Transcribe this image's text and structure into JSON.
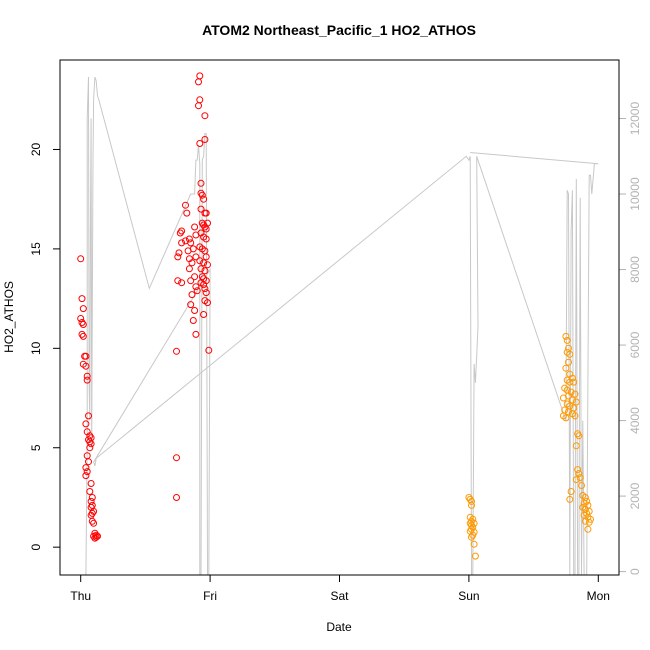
{
  "chart_data": {
    "type": "scatter",
    "title": "ATOM2 Northeast_Pacific_1 HO2_ATHOS",
    "xlabel": "Date",
    "ylabel": "HO2_ATHOS",
    "x_ticks": [
      {
        "value": 0,
        "label": "Thu"
      },
      {
        "value": 1,
        "label": "Fri"
      },
      {
        "value": 2,
        "label": "Sat"
      },
      {
        "value": 3,
        "label": "Sun"
      },
      {
        "value": 4,
        "label": "Mon"
      }
    ],
    "xlim": [
      -0.16,
      4.16
    ],
    "ylim": [
      -1.4,
      24.5
    ],
    "y_ticks": [
      0,
      5,
      10,
      15,
      20
    ],
    "y2lim": [
      -90,
      13550
    ],
    "y2_ticks": [
      0,
      2000,
      4000,
      6000,
      8000,
      10000,
      12000
    ],
    "grid": false,
    "colors": {
      "red": "#ff0000",
      "orange": "#ff9900",
      "altitude_line": "#c8c8c8"
    },
    "series": [
      {
        "color": "red",
        "points": [
          [
            0.0,
            14.5
          ],
          [
            0.01,
            12.5
          ],
          [
            0.02,
            12.0
          ],
          [
            0.0,
            11.5
          ],
          [
            0.01,
            11.3
          ],
          [
            0.02,
            11.2
          ],
          [
            0.01,
            10.7
          ],
          [
            0.02,
            10.6
          ],
          [
            0.03,
            9.6
          ],
          [
            0.04,
            9.6
          ],
          [
            0.02,
            9.2
          ],
          [
            0.04,
            9.1
          ],
          [
            0.05,
            8.6
          ],
          [
            0.05,
            8.4
          ],
          [
            0.06,
            6.6
          ],
          [
            0.04,
            6.2
          ],
          [
            0.05,
            5.8
          ],
          [
            0.07,
            5.6
          ],
          [
            0.08,
            5.5
          ],
          [
            0.06,
            5.4
          ],
          [
            0.07,
            5.3
          ],
          [
            0.08,
            5.2
          ],
          [
            0.07,
            5.0
          ],
          [
            0.05,
            4.6
          ],
          [
            0.06,
            4.3
          ],
          [
            0.04,
            4.0
          ],
          [
            0.05,
            3.8
          ],
          [
            0.04,
            3.6
          ],
          [
            0.08,
            3.2
          ],
          [
            0.07,
            2.8
          ],
          [
            0.09,
            2.5
          ],
          [
            0.08,
            2.3
          ],
          [
            0.09,
            2.1
          ],
          [
            0.08,
            2.0
          ],
          [
            0.1,
            1.8
          ],
          [
            0.09,
            1.7
          ],
          [
            0.08,
            1.6
          ],
          [
            0.09,
            1.3
          ],
          [
            0.1,
            1.2
          ],
          [
            0.11,
            0.7
          ],
          [
            0.12,
            0.6
          ],
          [
            0.1,
            0.55
          ],
          [
            0.12,
            0.5
          ],
          [
            0.11,
            0.45
          ],
          [
            0.13,
            0.55
          ],
          [
            0.74,
            9.85
          ],
          [
            0.74,
            4.5
          ],
          [
            0.74,
            2.5
          ],
          [
            0.75,
            14.6
          ],
          [
            0.76,
            14.8
          ],
          [
            0.75,
            13.4
          ],
          [
            0.78,
            13.3
          ],
          [
            0.77,
            15.8
          ],
          [
            0.78,
            15.9
          ],
          [
            0.78,
            15.3
          ],
          [
            0.81,
            17.2
          ],
          [
            0.82,
            16.8
          ],
          [
            0.81,
            15.4
          ],
          [
            0.84,
            15.5
          ],
          [
            0.85,
            15.3
          ],
          [
            0.83,
            14.9
          ],
          [
            0.84,
            14.5
          ],
          [
            0.86,
            14.3
          ],
          [
            0.84,
            14.0
          ],
          [
            0.85,
            13.4
          ],
          [
            0.86,
            12.7
          ],
          [
            0.85,
            12.2
          ],
          [
            0.88,
            16.1
          ],
          [
            0.89,
            15.7
          ],
          [
            0.87,
            15.0
          ],
          [
            0.89,
            14.6
          ],
          [
            0.88,
            13.6
          ],
          [
            0.89,
            13.1
          ],
          [
            0.9,
            12.9
          ],
          [
            0.88,
            11.9
          ],
          [
            0.87,
            11.4
          ],
          [
            0.89,
            10.7
          ],
          [
            0.92,
            23.7
          ],
          [
            0.91,
            23.4
          ],
          [
            0.92,
            22.5
          ],
          [
            0.91,
            22.2
          ],
          [
            0.96,
            21.7
          ],
          [
            0.92,
            20.3
          ],
          [
            0.96,
            20.5
          ],
          [
            0.93,
            18.3
          ],
          [
            0.93,
            17.8
          ],
          [
            0.95,
            17.5
          ],
          [
            0.94,
            17.7
          ],
          [
            0.93,
            17.0
          ],
          [
            0.96,
            16.8
          ],
          [
            0.97,
            16.8
          ],
          [
            0.94,
            16.3
          ],
          [
            0.95,
            16.2
          ],
          [
            0.96,
            16.1
          ],
          [
            0.98,
            16.3
          ],
          [
            0.97,
            16.0
          ],
          [
            0.93,
            15.8
          ],
          [
            0.95,
            15.6
          ],
          [
            0.97,
            15.5
          ],
          [
            0.92,
            15.1
          ],
          [
            0.94,
            15.0
          ],
          [
            0.96,
            14.9
          ],
          [
            0.97,
            14.6
          ],
          [
            0.92,
            14.4
          ],
          [
            0.95,
            14.3
          ],
          [
            0.93,
            14.0
          ],
          [
            0.96,
            13.9
          ],
          [
            0.98,
            14.2
          ],
          [
            0.94,
            13.6
          ],
          [
            0.95,
            13.5
          ],
          [
            0.97,
            13.4
          ],
          [
            0.93,
            13.3
          ],
          [
            0.95,
            13.2
          ],
          [
            0.96,
            13.0
          ],
          [
            0.97,
            12.8
          ],
          [
            0.98,
            12.3
          ],
          [
            0.96,
            12.4
          ],
          [
            0.95,
            11.7
          ],
          [
            0.99,
            9.9
          ]
        ]
      },
      {
        "color": "orange",
        "points": [
          [
            3.0,
            2.5
          ],
          [
            3.01,
            2.4
          ],
          [
            3.02,
            2.3
          ],
          [
            3.02,
            2.1
          ],
          [
            3.01,
            1.5
          ],
          [
            3.03,
            1.4
          ],
          [
            3.02,
            1.3
          ],
          [
            3.01,
            1.2
          ],
          [
            3.04,
            1.2
          ],
          [
            3.02,
            1.1
          ],
          [
            3.03,
            1.0
          ],
          [
            3.02,
            0.9
          ],
          [
            3.01,
            0.8
          ],
          [
            3.04,
            0.75
          ],
          [
            3.03,
            0.6
          ],
          [
            3.02,
            0.5
          ],
          [
            3.04,
            0.15
          ],
          [
            3.05,
            -0.45
          ],
          [
            3.75,
            10.6
          ],
          [
            3.76,
            10.4
          ],
          [
            3.77,
            10.0
          ],
          [
            3.76,
            9.8
          ],
          [
            3.78,
            9.7
          ],
          [
            3.77,
            9.3
          ],
          [
            3.75,
            9.0
          ],
          [
            3.78,
            8.7
          ],
          [
            3.8,
            8.5
          ],
          [
            3.76,
            8.4
          ],
          [
            3.78,
            8.3
          ],
          [
            3.81,
            8.3
          ],
          [
            3.74,
            8.0
          ],
          [
            3.76,
            7.9
          ],
          [
            3.79,
            7.8
          ],
          [
            3.82,
            7.7
          ],
          [
            3.77,
            7.6
          ],
          [
            3.73,
            7.5
          ],
          [
            3.8,
            7.4
          ],
          [
            3.83,
            7.3
          ],
          [
            3.76,
            7.2
          ],
          [
            3.78,
            7.1
          ],
          [
            3.81,
            7.0
          ],
          [
            3.74,
            6.9
          ],
          [
            3.77,
            6.8
          ],
          [
            3.8,
            6.7
          ],
          [
            3.73,
            6.6
          ],
          [
            3.75,
            6.5
          ],
          [
            3.82,
            6.6
          ],
          [
            3.84,
            5.7
          ],
          [
            3.85,
            5.6
          ],
          [
            3.83,
            5.1
          ],
          [
            3.84,
            3.9
          ],
          [
            3.85,
            3.7
          ],
          [
            3.86,
            3.5
          ],
          [
            3.83,
            3.4
          ],
          [
            3.87,
            3.1
          ],
          [
            3.88,
            2.6
          ],
          [
            3.79,
            2.8
          ],
          [
            3.78,
            2.4
          ],
          [
            3.9,
            2.5
          ],
          [
            3.91,
            2.3
          ],
          [
            3.89,
            2.2
          ],
          [
            3.92,
            2.1
          ],
          [
            3.88,
            2.0
          ],
          [
            3.9,
            1.9
          ],
          [
            3.93,
            1.8
          ],
          [
            3.91,
            1.7
          ],
          [
            3.89,
            1.6
          ],
          [
            3.92,
            1.5
          ],
          [
            3.94,
            1.4
          ],
          [
            3.9,
            1.3
          ],
          [
            3.93,
            1.25
          ],
          [
            3.92,
            0.9
          ]
        ]
      }
    ],
    "altitude_line": [
      [
        0.04,
        -90
      ],
      [
        0.05,
        3500
      ],
      [
        0.05,
        12000
      ],
      [
        0.06,
        13100
      ],
      [
        0.065,
        5000
      ],
      [
        0.07,
        4000
      ],
      [
        0.075,
        9000
      ],
      [
        0.08,
        12000
      ],
      [
        0.085,
        3300
      ],
      [
        0.09,
        7000
      ],
      [
        0.095,
        10900
      ],
      [
        0.1,
        12500
      ],
      [
        0.11,
        13100
      ],
      [
        0.12,
        13000
      ],
      [
        0.13,
        12600
      ],
      [
        0.14,
        12500
      ],
      [
        0.53,
        7500
      ],
      [
        0.85,
        10000
      ],
      [
        0.88,
        10000
      ],
      [
        0.89,
        10900
      ],
      [
        0.9,
        10900
      ],
      [
        0.91,
        11300
      ],
      [
        0.92,
        10800
      ],
      [
        0.92,
        -90
      ],
      [
        0.93,
        -90
      ],
      [
        0.94,
        10900
      ],
      [
        0.95,
        11000
      ],
      [
        0.96,
        11600
      ],
      [
        0.97,
        11600
      ],
      [
        0.98,
        -90
      ],
      [
        0.99,
        -90
      ],
      [
        1.0,
        8000
      ],
      [
        0.1,
        2900
      ],
      [
        0.11,
        2800
      ],
      [
        0.12,
        3000
      ],
      [
        2.98,
        11000
      ],
      [
        3.0,
        10900
      ],
      [
        3.01,
        11000
      ],
      [
        3.02,
        -90
      ],
      [
        3.03,
        -90
      ],
      [
        3.04,
        5500
      ],
      [
        3.05,
        5000
      ],
      [
        3.06,
        5700
      ],
      [
        3.07,
        6500
      ],
      [
        3.06,
        11000
      ],
      [
        3.75,
        4000
      ],
      [
        3.76,
        10100
      ],
      [
        3.77,
        10000
      ],
      [
        3.78,
        -90
      ],
      [
        3.79,
        9000
      ],
      [
        3.8,
        10100
      ],
      [
        3.81,
        -90
      ],
      [
        3.82,
        -90
      ],
      [
        3.83,
        10400
      ],
      [
        3.84,
        -90
      ],
      [
        3.85,
        -90
      ],
      [
        3.86,
        9900
      ],
      [
        3.87,
        -90
      ],
      [
        3.88,
        4000
      ],
      [
        3.89,
        -90
      ],
      [
        3.91,
        -90
      ],
      [
        3.93,
        10500
      ],
      [
        3.94,
        10500
      ],
      [
        3.95,
        10000
      ],
      [
        3.96,
        10400
      ],
      [
        3.97,
        10800
      ],
      [
        4.0,
        10800
      ],
      [
        3.01,
        11100
      ]
    ]
  }
}
